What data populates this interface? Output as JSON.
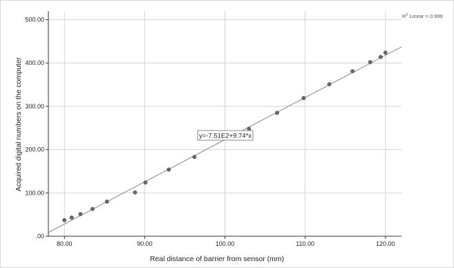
{
  "chart_data": {
    "type": "scatter",
    "xlabel": "Real distance of barrier from sensor (mm)",
    "ylabel": "Acquired digital numbers on the computer",
    "xlim": [
      78,
      122
    ],
    "ylim": [
      0,
      520
    ],
    "x_ticks": [
      80,
      90,
      100,
      110,
      120
    ],
    "x_tick_labels": [
      "80.00",
      "90.00",
      "100.00",
      "110.00",
      "120.00"
    ],
    "y_ticks": [
      0,
      100,
      200,
      300,
      400,
      500
    ],
    "y_tick_labels": [
      ".00",
      "100.00",
      "200.00",
      "300.00",
      "400.00",
      "500.00"
    ],
    "grid": true,
    "points": [
      {
        "x": 80.0,
        "y": 37
      },
      {
        "x": 80.9,
        "y": 43
      },
      {
        "x": 82.0,
        "y": 51
      },
      {
        "x": 83.5,
        "y": 63
      },
      {
        "x": 85.3,
        "y": 80
      },
      {
        "x": 88.8,
        "y": 101
      },
      {
        "x": 90.1,
        "y": 124
      },
      {
        "x": 93.0,
        "y": 154
      },
      {
        "x": 96.2,
        "y": 183
      },
      {
        "x": 103.0,
        "y": 248
      },
      {
        "x": 106.5,
        "y": 285
      },
      {
        "x": 109.8,
        "y": 319
      },
      {
        "x": 113.0,
        "y": 351
      },
      {
        "x": 115.9,
        "y": 381
      },
      {
        "x": 118.1,
        "y": 402
      },
      {
        "x": 119.4,
        "y": 414
      },
      {
        "x": 120.0,
        "y": 424
      }
    ],
    "fit_line": {
      "intercept": -751,
      "slope": 9.74,
      "x_from": 78,
      "x_to": 122
    },
    "fit_equation": "y=-7.51E2+9.74*x",
    "r2_label_prefix": "R",
    "r2_label_suffix": " Linear = 0.999",
    "colors": {
      "point": "#666666",
      "line": "#9a9a9a",
      "grid": "#d4d4d4",
      "axis": "#333333"
    }
  }
}
